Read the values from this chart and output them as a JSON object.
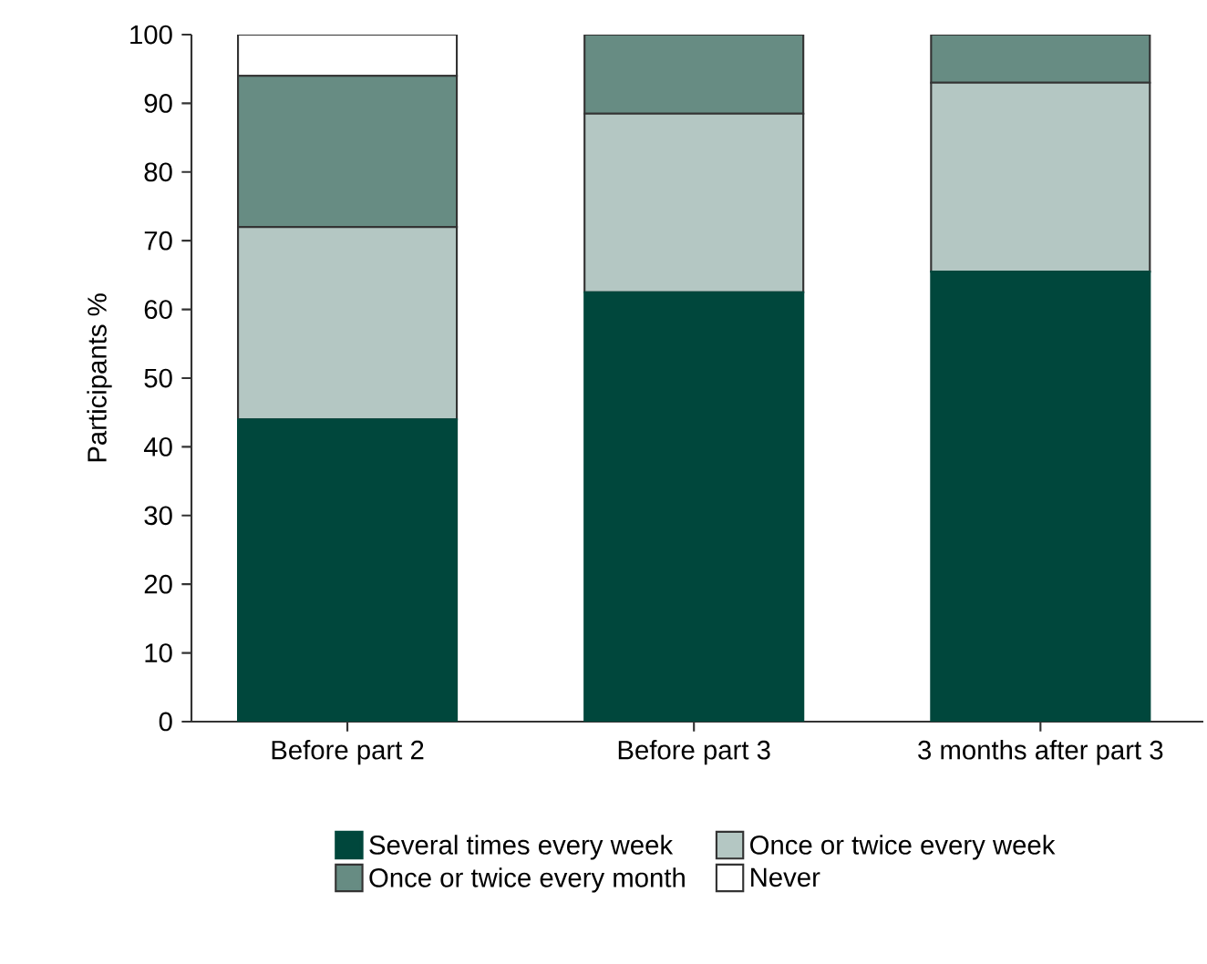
{
  "chart_data": {
    "type": "bar",
    "stacked": true,
    "ylabel": "Participants %",
    "categories": [
      "Before part 2",
      "Before part 3",
      "3 months after part 3"
    ],
    "series": [
      {
        "name": "Several times every week",
        "color": "#00473c",
        "values": [
          44,
          62.5,
          65.5
        ]
      },
      {
        "name": "Once or twice every week",
        "color": "#b4c7c3",
        "values": [
          28,
          26,
          27.5
        ]
      },
      {
        "name": "Once or twice every month",
        "color": "#678c83",
        "values": [
          22,
          11.5,
          7
        ]
      },
      {
        "name": "Never",
        "color": "#ffffff",
        "values": [
          6,
          0,
          0
        ]
      }
    ],
    "ylim": [
      0,
      100
    ],
    "yticks": [
      0,
      10,
      20,
      30,
      40,
      50,
      60,
      70,
      80,
      90,
      100
    ],
    "legend": "bottom"
  }
}
